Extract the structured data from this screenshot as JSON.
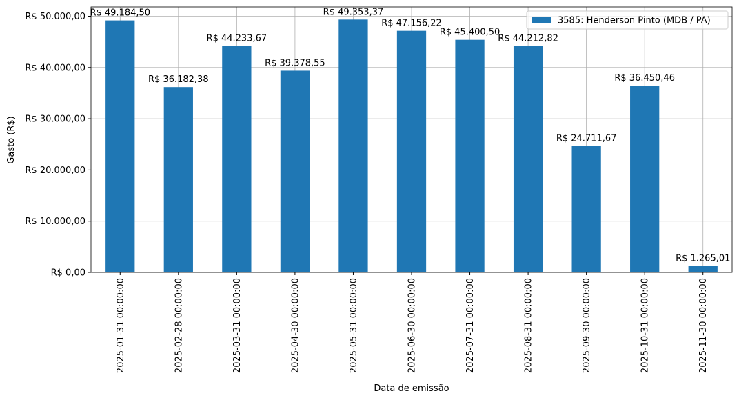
{
  "chart_data": {
    "type": "bar",
    "categories": [
      "2025-01-31 00:00:00",
      "2025-02-28 00:00:00",
      "2025-03-31 00:00:00",
      "2025-04-30 00:00:00",
      "2025-05-31 00:00:00",
      "2025-06-30 00:00:00",
      "2025-07-31 00:00:00",
      "2025-08-31 00:00:00",
      "2025-09-30 00:00:00",
      "2025-10-31 00:00:00",
      "2025-11-30 00:00:00"
    ],
    "series": [
      {
        "name": "3585: Henderson Pinto (MDB / PA)",
        "color": "#1f77b4",
        "values": [
          49184.5,
          36182.38,
          44233.67,
          39378.55,
          49353.37,
          47156.22,
          45400.5,
          44212.82,
          24711.67,
          36450.46,
          1265.01
        ],
        "value_labels": [
          "R$ 49.184,50",
          "R$ 36.182,38",
          "R$ 44.233,67",
          "R$ 39.378,55",
          "R$ 49.353,37",
          "R$ 47.156,22",
          "R$ 45.400,50",
          "R$ 44.212,82",
          "R$ 24.711,67",
          "R$ 36.450,46",
          "R$ 1.265,01"
        ]
      }
    ],
    "xlabel": "Data de emissão",
    "ylabel": "Gasto (R$)",
    "ylim": [
      0,
      51821
    ],
    "yticks": [
      {
        "value": 0,
        "label": "R$ 0,00"
      },
      {
        "value": 10000,
        "label": "R$ 10.000,00"
      },
      {
        "value": 20000,
        "label": "R$ 20.000,00"
      },
      {
        "value": 30000,
        "label": "R$ 30.000,00"
      },
      {
        "value": 40000,
        "label": "R$ 40.000,00"
      },
      {
        "value": 50000,
        "label": "R$ 50.000,00"
      }
    ],
    "grid": true,
    "legend": "upper right"
  }
}
